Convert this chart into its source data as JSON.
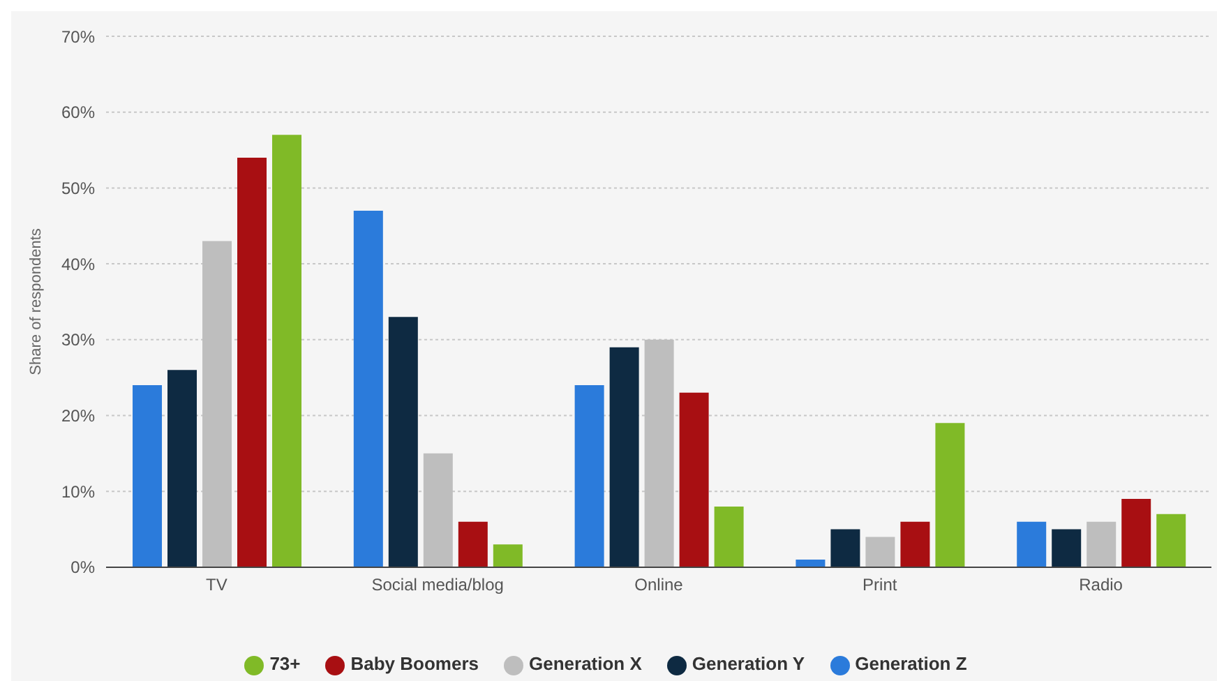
{
  "chart_data": {
    "type": "bar",
    "ylabel": "Share of respondents",
    "categories": [
      "TV",
      "Social media/blog",
      "Online",
      "Print",
      "Radio"
    ],
    "series": [
      {
        "name": "Generation Z",
        "color": "#2b7bdb",
        "values": [
          24,
          47,
          24,
          1,
          6
        ]
      },
      {
        "name": "Generation Y",
        "color": "#0e2a42",
        "values": [
          26,
          33,
          29,
          5,
          5
        ]
      },
      {
        "name": "Generation X",
        "color": "#bebebe",
        "values": [
          43,
          15,
          30,
          4,
          6
        ]
      },
      {
        "name": "Baby Boomers",
        "color": "#a80f12",
        "values": [
          54,
          6,
          23,
          6,
          9
        ]
      },
      {
        "name": "73+",
        "color": "#80ba27",
        "values": [
          57,
          3,
          8,
          19,
          7
        ]
      }
    ],
    "ylim": [
      0,
      70
    ],
    "yticks": [
      {
        "value": 0,
        "label": "0%"
      },
      {
        "value": 10,
        "label": "10%"
      },
      {
        "value": 20,
        "label": "20%"
      },
      {
        "value": 30,
        "label": "30%"
      },
      {
        "value": 40,
        "label": "40%"
      },
      {
        "value": 50,
        "label": "50%"
      },
      {
        "value": 60,
        "label": "60%"
      },
      {
        "value": 70,
        "label": "70%"
      }
    ],
    "grid": "y",
    "legend": "bottom"
  }
}
